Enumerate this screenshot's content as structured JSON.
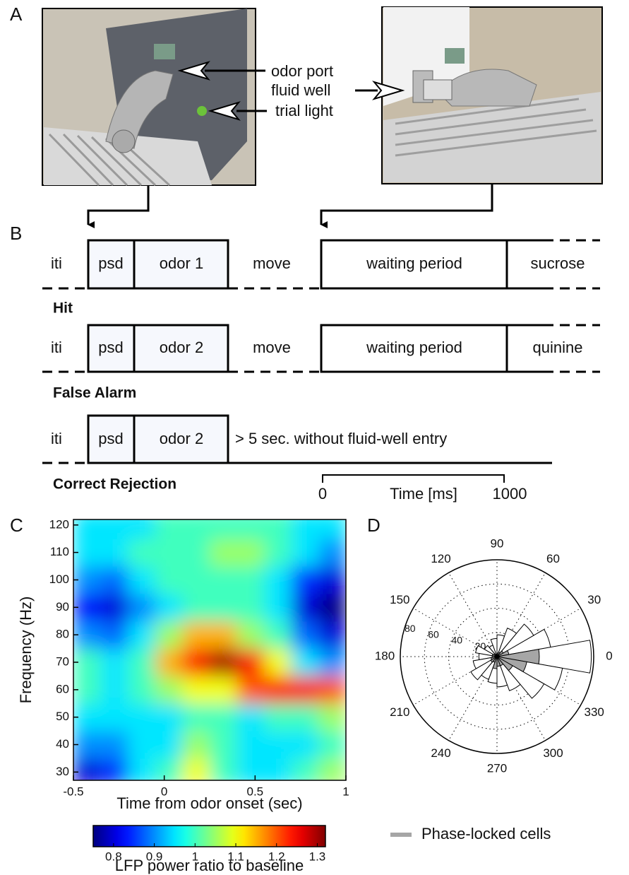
{
  "panel_labels": [
    "A",
    "B",
    "C",
    "D"
  ],
  "panel_a": {
    "callouts": [
      "odor port",
      "fluid well",
      "trial light"
    ]
  },
  "panel_b": {
    "rows": [
      {
        "segments": [
          "iti",
          "psd",
          "odor 1",
          "move",
          "waiting period",
          "sucrose"
        ],
        "outcome": "Hit"
      },
      {
        "segments": [
          "iti",
          "psd",
          "odor 2",
          "move",
          "waiting period",
          "quinine"
        ],
        "outcome": "False Alarm"
      },
      {
        "segments": [
          "iti",
          "psd",
          "odor 2",
          "> 5 sec. without fluid-well entry"
        ],
        "outcome": "Correct Rejection"
      }
    ],
    "scale": {
      "start": 0,
      "label": "Time [ms]",
      "end": 1000
    }
  },
  "chart_data": [
    {
      "type": "heatmap",
      "xlabel": "Time from odor onset (sec)",
      "ylabel": "Frequency (Hz)",
      "x": [
        -0.425,
        -0.275,
        -0.125,
        0.025,
        0.175,
        0.325,
        0.475,
        0.625,
        0.775,
        0.925
      ],
      "y": [
        30,
        40,
        50,
        60,
        70,
        80,
        90,
        100,
        110,
        120
      ],
      "values": [
        [
          0.8,
          0.85,
          0.95,
          1.0,
          1.1,
          1.0,
          0.95,
          0.95,
          1.0,
          1.05
        ],
        [
          0.9,
          0.9,
          0.95,
          0.95,
          1.05,
          1.0,
          0.95,
          0.95,
          0.95,
          1.0
        ],
        [
          0.95,
          0.95,
          0.95,
          0.95,
          1.0,
          1.0,
          0.95,
          1.0,
          1.0,
          1.05
        ],
        [
          1.0,
          0.95,
          1.0,
          1.05,
          1.1,
          1.1,
          1.2,
          1.25,
          1.25,
          1.2
        ],
        [
          1.0,
          0.95,
          1.0,
          1.15,
          1.25,
          1.3,
          1.25,
          1.1,
          0.95,
          0.9
        ],
        [
          0.9,
          0.88,
          0.95,
          1.05,
          1.15,
          1.15,
          1.05,
          1.0,
          0.88,
          0.8
        ],
        [
          0.82,
          0.8,
          0.9,
          0.95,
          1.0,
          1.0,
          1.0,
          0.95,
          0.8,
          0.75
        ],
        [
          0.9,
          0.88,
          0.95,
          1.0,
          1.0,
          1.0,
          1.0,
          0.95,
          0.85,
          0.8
        ],
        [
          0.95,
          0.95,
          1.0,
          1.0,
          1.0,
          1.05,
          1.05,
          1.0,
          0.95,
          0.9
        ],
        [
          0.95,
          0.95,
          0.95,
          1.0,
          1.0,
          1.0,
          1.0,
          1.0,
          0.95,
          0.95
        ]
      ],
      "xlim": [
        -0.5,
        1
      ],
      "ylim": [
        27,
        122
      ],
      "xticks": [
        -0.5,
        0,
        0.5,
        1
      ],
      "yticks": [
        30,
        40,
        50,
        60,
        70,
        80,
        90,
        100,
        110,
        120
      ],
      "colormap": "jet",
      "colorbar": {
        "label": "LFP power ratio to baseline",
        "clim": [
          0.75,
          1.32
        ],
        "ticks": [
          0.8,
          0.9,
          1,
          1.1,
          1.2,
          1.3
        ]
      }
    },
    {
      "type": "rose",
      "theta": [
        0,
        20,
        40,
        60,
        80,
        100,
        120,
        140,
        160,
        180,
        200,
        220,
        240,
        260,
        280,
        300,
        320,
        340
      ],
      "series": [
        {
          "color": "#ffffff",
          "values": [
            78,
            45,
            35,
            25,
            18,
            15,
            10,
            12,
            18,
            15,
            20,
            25,
            20,
            22,
            25,
            30,
            45,
            55
          ]
        },
        {
          "name": "Phase-locked cells",
          "color": "#a6a6a6",
          "values": [
            35,
            10,
            6,
            4,
            3,
            2,
            2,
            3,
            4,
            4,
            5,
            6,
            5,
            10,
            8,
            8,
            15,
            25
          ]
        }
      ],
      "rlim": [
        0,
        80
      ],
      "rticks": [
        20,
        40,
        60,
        80
      ],
      "thetaticks": [
        0,
        30,
        60,
        90,
        120,
        150,
        180,
        210,
        240,
        270,
        300,
        330
      ]
    }
  ]
}
